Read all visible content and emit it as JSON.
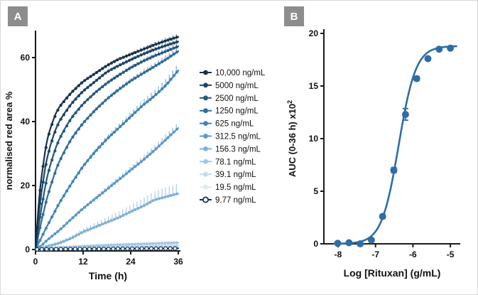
{
  "figure": {
    "panels": [
      {
        "label": "A"
      },
      {
        "label": "B"
      }
    ]
  },
  "chart_data": [
    {
      "type": "line",
      "panel": "A",
      "title": "",
      "xlabel": "Time (h)",
      "ylabel": "normalised red area %",
      "xlim": [
        0,
        36
      ],
      "ylim": [
        0,
        68
      ],
      "xticks": [
        0,
        12,
        24,
        36
      ],
      "yticks": [
        0,
        20,
        40,
        60
      ],
      "grid": false,
      "legend_position": "right",
      "x": [
        0,
        1,
        2,
        3,
        4.5,
        6,
        9,
        12,
        15,
        18,
        21,
        24,
        27,
        30,
        33,
        36
      ],
      "series": [
        {
          "name": "10,000 ng/mL",
          "color": "#16334d",
          "marker": "filled",
          "err": 1.0,
          "values": [
            0,
            17,
            27,
            34.5,
            40.5,
            44.5,
            49,
            52.5,
            55,
            57.5,
            59.5,
            61,
            62.5,
            64,
            65.3,
            66.5
          ]
        },
        {
          "name": "5000 ng/mL",
          "color": "#1d4464",
          "marker": "filled",
          "err": 1.0,
          "values": [
            0,
            13,
            22,
            29,
            35.5,
            40,
            45.5,
            49.5,
            52.5,
            55.5,
            57.5,
            59.3,
            61,
            62.5,
            63.8,
            65
          ]
        },
        {
          "name": "2500 ng/mL",
          "color": "#25587e",
          "marker": "filled",
          "err": 1.1,
          "values": [
            0,
            9,
            16.5,
            23,
            29.5,
            34.5,
            41,
            45.5,
            49,
            52,
            54.5,
            56.8,
            58.8,
            60.5,
            62,
            63.5
          ]
        },
        {
          "name": "1250 ng/mL",
          "color": "#2e6d9b",
          "marker": "filled",
          "err": 1.4,
          "values": [
            0,
            6,
            11.5,
            16.5,
            22.5,
            27.5,
            34.5,
            39.5,
            43.5,
            47,
            50,
            52.7,
            55,
            57.2,
            59.5,
            62
          ]
        },
        {
          "name": "625 ng/mL",
          "color": "#3e84b8",
          "marker": "filled",
          "err": 2.2,
          "values": [
            0,
            2.5,
            5,
            7.5,
            11,
            14.5,
            20.5,
            26,
            30.5,
            34.5,
            38,
            41.5,
            45,
            48,
            51.5,
            56
          ]
        },
        {
          "name": "312.5 ng/mL",
          "color": "#5b9bc9",
          "marker": "filled",
          "err": 1.8,
          "values": [
            0,
            0.8,
            1.8,
            3,
            4.5,
            6,
            9.5,
            12.8,
            15.8,
            18.8,
            21.8,
            24.8,
            27.8,
            31,
            34.5,
            38
          ]
        },
        {
          "name": "156.3 ng/mL",
          "color": "#7fb1d8",
          "marker": "filled",
          "err": 3.2,
          "values": [
            0,
            0.3,
            0.6,
            1,
            1.5,
            2,
            3.5,
            5.5,
            7,
            8.5,
            10,
            11.8,
            13.5,
            15.5,
            16.5,
            17.5
          ]
        },
        {
          "name": "78.1 ng/mL",
          "color": "#a2c7e4",
          "marker": "filled",
          "err": 0.6,
          "values": [
            0,
            0.1,
            0.2,
            0.3,
            0.45,
            0.6,
            0.8,
            1,
            1.2,
            1.35,
            1.5,
            1.6,
            1.75,
            1.85,
            2,
            2.1
          ]
        },
        {
          "name": "39.1 ng/mL",
          "color": "#c2daee",
          "marker": "filled",
          "err": 0.5,
          "values": [
            0,
            0.05,
            0.1,
            0.15,
            0.25,
            0.3,
            0.4,
            0.5,
            0.6,
            0.7,
            0.8,
            0.85,
            0.95,
            1.05,
            1.1,
            1.2
          ]
        },
        {
          "name": "19.5 ng/mL",
          "color": "#dcebf6",
          "marker": "filled",
          "err": 0.4,
          "values": [
            0,
            0.05,
            0.1,
            0.1,
            0.15,
            0.2,
            0.25,
            0.3,
            0.35,
            0.4,
            0.45,
            0.5,
            0.55,
            0.6,
            0.6,
            0.65
          ]
        },
        {
          "name": "9.77 ng/mL",
          "color": "#16334d",
          "marker": "open",
          "err": 0.2,
          "values": [
            0,
            0.05,
            0.05,
            0.1,
            0.1,
            0.1,
            0.15,
            0.15,
            0.2,
            0.2,
            0.25,
            0.25,
            0.3,
            0.3,
            0.3,
            0.35
          ]
        }
      ]
    },
    {
      "type": "scatter",
      "panel": "B",
      "title": "",
      "xlabel": "Log [Rituxan] (g/mL)",
      "ylabel": "AUC (0-36 h) x10",
      "ylabel_sup": "2",
      "xlim": [
        -8.45,
        -4.65
      ],
      "ylim": [
        0,
        20
      ],
      "xticks": [
        -8,
        -7,
        -6,
        -5
      ],
      "yticks": [
        0,
        5,
        10,
        15,
        20
      ],
      "grid": false,
      "color": "#2e6da6",
      "points": {
        "x": [
          -8.01,
          -7.71,
          -7.41,
          -7.11,
          -6.81,
          -6.51,
          -6.2,
          -5.9,
          -5.6,
          -5.3,
          -5.0
        ],
        "y": [
          0.05,
          0.1,
          0.0,
          0.35,
          2.6,
          7.0,
          12.3,
          15.7,
          17.6,
          18.5,
          18.6
        ],
        "err": [
          0,
          0,
          0,
          0,
          0.2,
          0.25,
          0.55,
          0.2,
          0.15,
          0.1,
          0.1
        ]
      },
      "fit": {
        "top": 18.8,
        "logec50": -6.38,
        "hill": 1.9
      }
    }
  ]
}
